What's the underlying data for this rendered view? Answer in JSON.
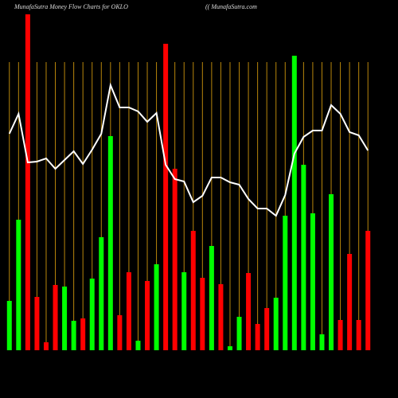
{
  "chart_data": {
    "type": "bar",
    "title": "MunafaSutra  Money Flow  Charts for OKLO",
    "subtitle": "(( MunafaSutra.com",
    "categories": [
      null,
      null,
      null,
      null,
      null,
      null,
      null,
      null,
      null,
      null,
      null,
      null,
      null,
      null,
      null,
      null,
      null,
      null,
      null,
      null,
      null,
      null,
      null,
      null,
      null,
      null,
      null,
      null,
      null,
      null,
      null,
      null,
      null,
      null,
      null,
      null,
      null,
      null,
      null,
      null
    ],
    "ylim": [
      0,
      440
    ],
    "grid": true,
    "grid_color": "#b8860b",
    "series": [
      {
        "type": "bar",
        "values": [
          62,
          164,
          422,
          67,
          10,
          82,
          80,
          37,
          40,
          90,
          142,
          269,
          44,
          98,
          12,
          87,
          108,
          385,
          228,
          98,
          150,
          91,
          131,
          83,
          5,
          42,
          97,
          33,
          53,
          66,
          169,
          370,
          233,
          172,
          20,
          196,
          38,
          121,
          38,
          150
        ],
        "colors": [
          "#00ff00",
          "#00ff00",
          "#ff0000",
          "#ff0000",
          "#ff0000",
          "#ff0000",
          "#00ff00",
          "#00ff00",
          "#ff0000",
          "#00ff00",
          "#00ff00",
          "#00ff00",
          "#ff0000",
          "#ff0000",
          "#00ff00",
          "#ff0000",
          "#00ff00",
          "#ff0000",
          "#ff0000",
          "#00ff00",
          "#ff0000",
          "#ff0000",
          "#00ff00",
          "#ff0000",
          "#00ff00",
          "#00ff00",
          "#ff0000",
          "#ff0000",
          "#ff0000",
          "#00ff00",
          "#00ff00",
          "#00ff00",
          "#00ff00",
          "#00ff00",
          "#00ff00",
          "#00ff00",
          "#ff0000",
          "#ff0000",
          "#ff0000",
          "#ff0000"
        ]
      },
      {
        "type": "line",
        "color": "#ffffff",
        "values": [
          272,
          297,
          236,
          237,
          241,
          228,
          239,
          250,
          234,
          252,
          272,
          333,
          305,
          305,
          300,
          287,
          298,
          233,
          215,
          212,
          186,
          194,
          217,
          217,
          211,
          208,
          190,
          178,
          178,
          169,
          195,
          247,
          268,
          276,
          276,
          308,
          297,
          274,
          270,
          251
        ]
      }
    ]
  }
}
